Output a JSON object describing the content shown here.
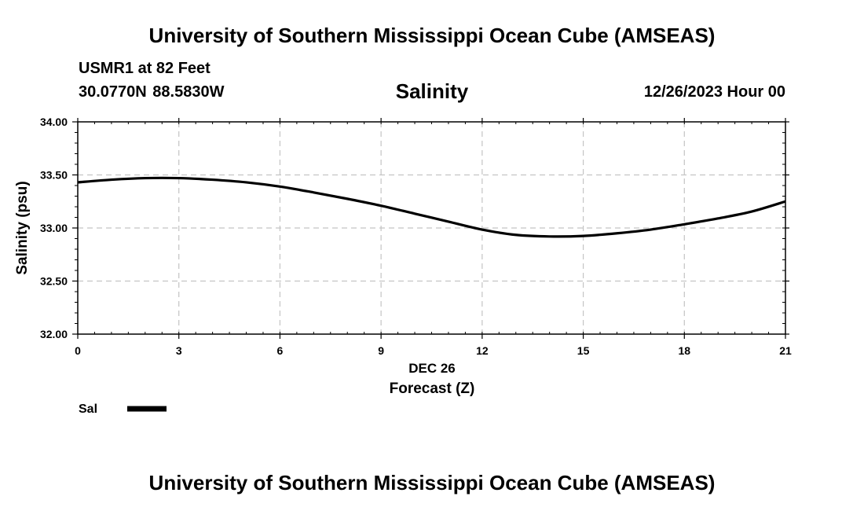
{
  "header": {
    "title": "University of Southern Mississippi Ocean Cube (AMSEAS)",
    "station": "USMR1 at 82 Feet",
    "coordinates": "30.0770N  88.5830W",
    "datetime": "12/26/2023 Hour 00"
  },
  "footer": {
    "title": "University of Southern Mississippi Ocean Cube (AMSEAS)"
  },
  "chart_data": {
    "type": "line",
    "title": "Salinity",
    "xlabel": "Forecast (Z)",
    "xlabel_date": "DEC 26",
    "ylabel": "Salinity (psu)",
    "xlim": [
      0,
      21
    ],
    "ylim": [
      32.0,
      34.0
    ],
    "x_ticks": [
      0,
      3,
      6,
      9,
      12,
      15,
      18,
      21
    ],
    "x_tick_labels": [
      "0",
      "3",
      "6",
      "9",
      "12",
      "15",
      "18",
      "21"
    ],
    "y_ticks": [
      32.0,
      32.5,
      33.0,
      33.5,
      34.0
    ],
    "y_tick_labels": [
      "32.00",
      "32.50",
      "33.00",
      "33.50",
      "34.00"
    ],
    "grid": true,
    "legend": "bottom-left",
    "series": [
      {
        "name": "Sal",
        "color": "#000000",
        "x": [
          0,
          1,
          2,
          3,
          4,
          5,
          6,
          7,
          8,
          9,
          10,
          11,
          12,
          13,
          14,
          15,
          16,
          17,
          18,
          19,
          20,
          21
        ],
        "values": [
          33.43,
          33.455,
          33.47,
          33.47,
          33.455,
          33.43,
          33.39,
          33.335,
          33.275,
          33.21,
          33.135,
          33.06,
          32.985,
          32.935,
          32.92,
          32.925,
          32.95,
          32.985,
          33.035,
          33.09,
          33.155,
          33.25
        ]
      }
    ]
  }
}
